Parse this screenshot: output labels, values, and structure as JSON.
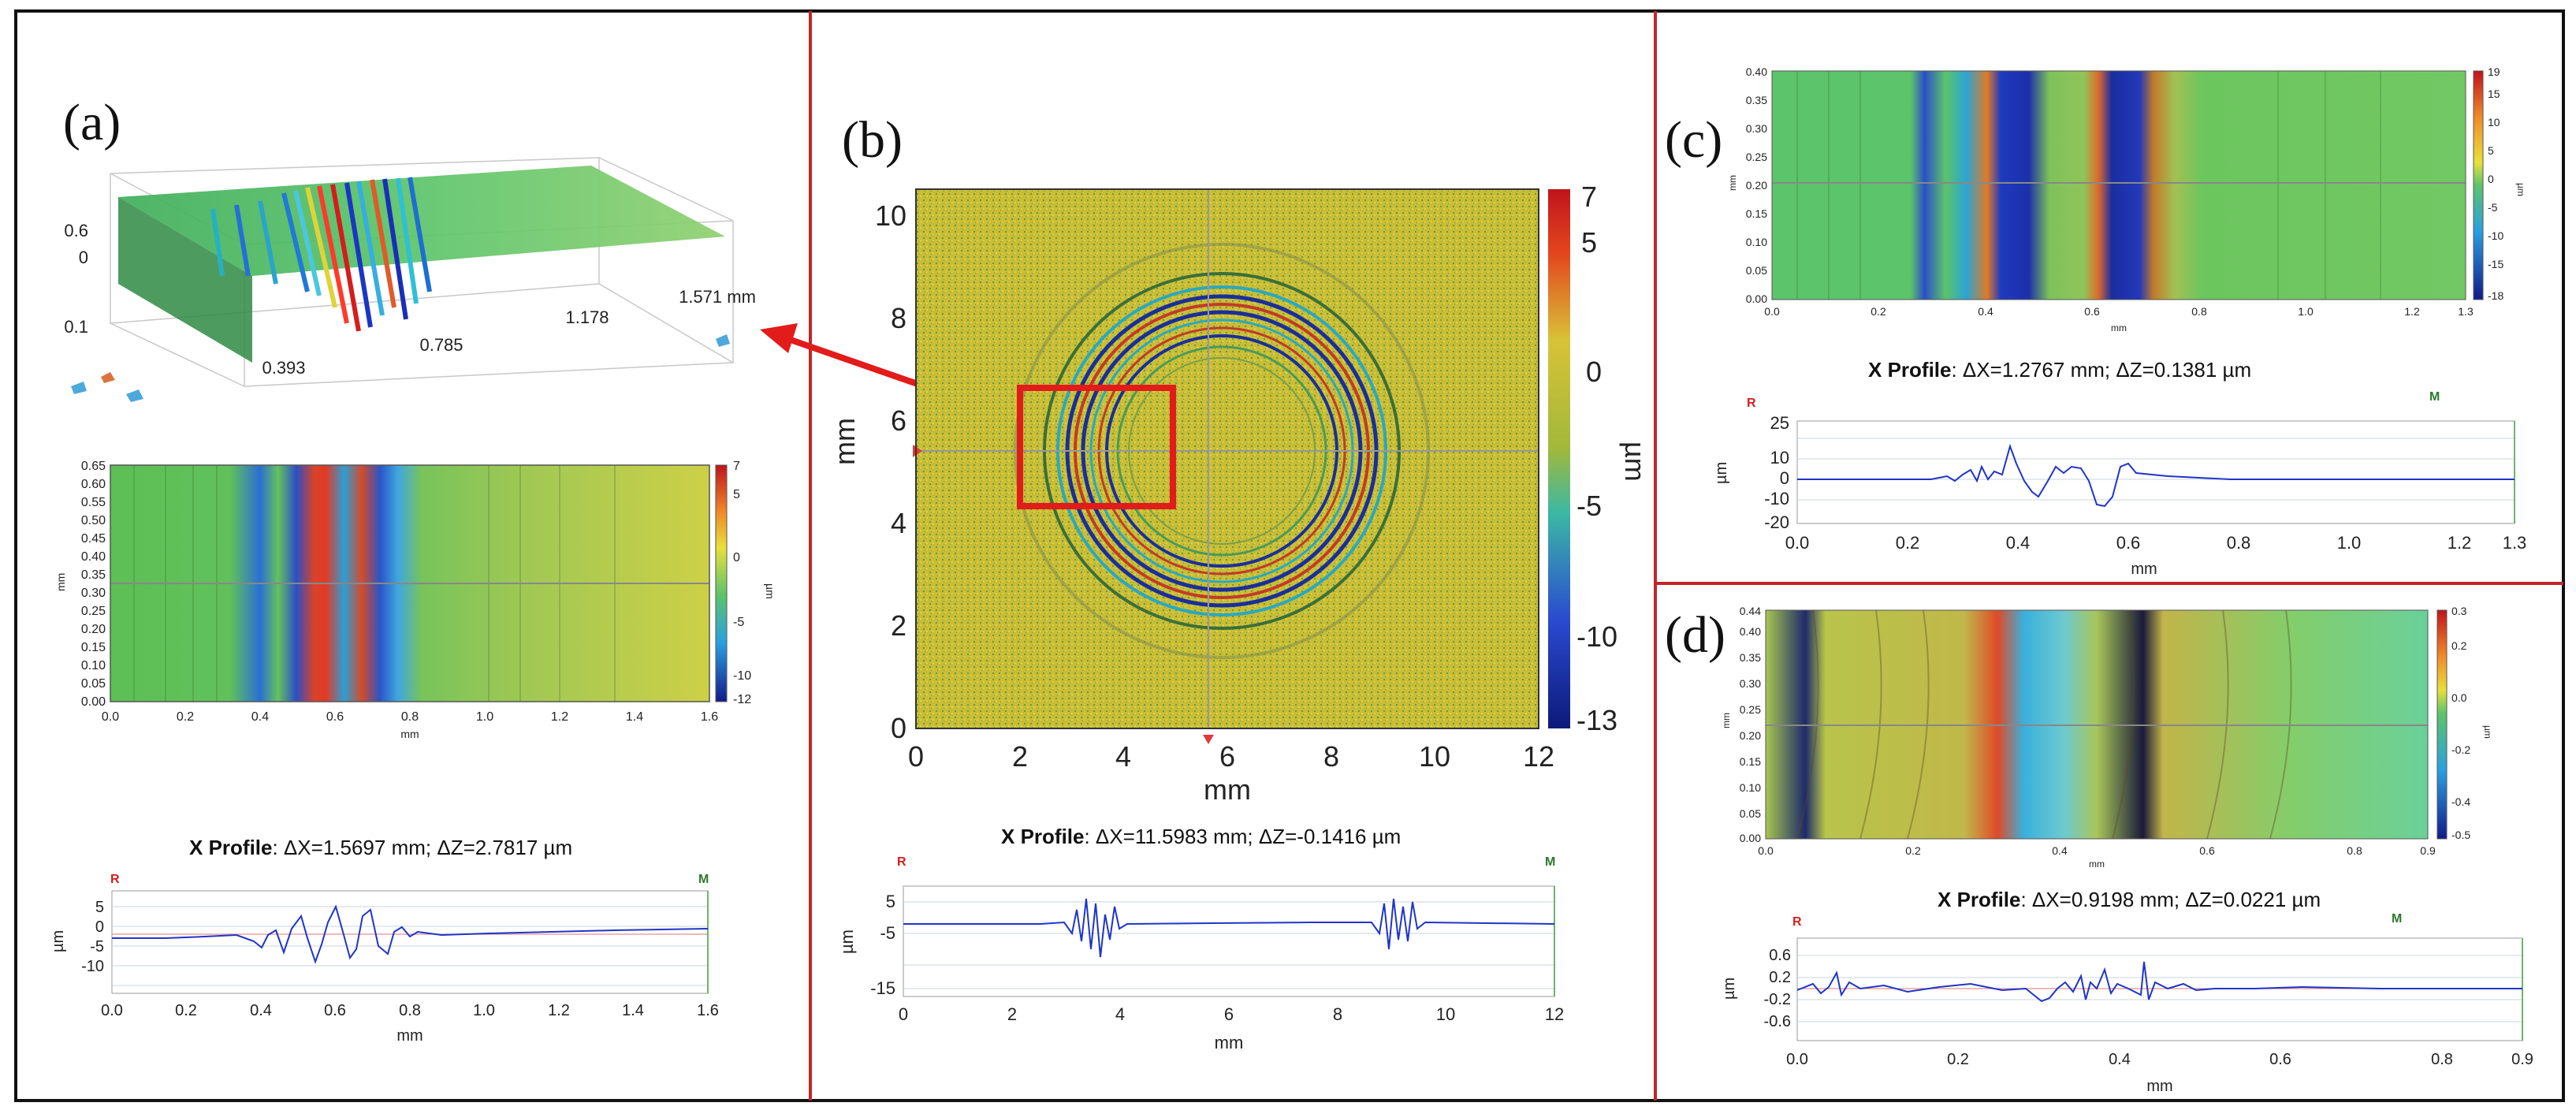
{
  "panels": {
    "a": {
      "label": "(a)",
      "surface3d": {
        "z_ticks": [
          "0.6",
          "0",
          "0.1"
        ],
        "x_ticks": [
          "0.393",
          "0.785",
          "1.178",
          "1.571 mm"
        ]
      },
      "map": {
        "y_unit": "mm",
        "x_unit": "mm",
        "color_unit": "µm",
        "y_ticks": [
          "0.00",
          "0.05",
          "0.10",
          "0.15",
          "0.20",
          "0.25",
          "0.30",
          "0.35",
          "0.40",
          "0.45",
          "0.50",
          "0.55",
          "0.60",
          "0.65"
        ],
        "x_ticks": [
          "0.0",
          "0.2",
          "0.4",
          "0.6",
          "0.8",
          "1.0",
          "1.2",
          "1.4",
          "1.6"
        ],
        "color_ticks": [
          "7",
          "5",
          "0",
          "-5",
          "-10",
          "-12"
        ]
      },
      "profile": {
        "title_prefix": "X Profile",
        "title_values": ": ΔX=1.5697 mm; ΔZ=2.7817 µm",
        "r_marker": "R",
        "m_marker": "M",
        "y_unit": "µm",
        "x_unit": "mm",
        "y_ticks": [
          "5",
          "0",
          "-5",
          "-10"
        ],
        "x_ticks": [
          "0.0",
          "0.2",
          "0.4",
          "0.6",
          "0.8",
          "1.0",
          "1.2",
          "1.4",
          "1.6"
        ]
      }
    },
    "b": {
      "label": "(b)",
      "map": {
        "y_unit": "mm",
        "x_unit": "mm",
        "color_unit": "µm",
        "y_ticks": [
          "0",
          "2",
          "4",
          "6",
          "8",
          "10"
        ],
        "x_ticks": [
          "0",
          "2",
          "4",
          "6",
          "8",
          "10",
          "12"
        ],
        "color_ticks": [
          "7",
          "5",
          "0",
          "-5",
          "-10",
          "-13"
        ]
      },
      "profile": {
        "title_prefix": "X Profile",
        "title_values": ": ΔX=11.5983 mm; ΔZ=-0.1416 µm",
        "r_marker": "R",
        "m_marker": "M",
        "y_unit": "µm",
        "x_unit": "mm",
        "y_ticks": [
          "5",
          "-5",
          "-15"
        ],
        "x_ticks": [
          "0",
          "2",
          "4",
          "6",
          "8",
          "10",
          "12"
        ]
      }
    },
    "c": {
      "label": "(c)",
      "map": {
        "y_unit": "mm",
        "x_unit": "mm",
        "color_unit": "µm",
        "y_ticks": [
          "0.00",
          "0.05",
          "0.10",
          "0.15",
          "0.20",
          "0.25",
          "0.30",
          "0.35",
          "0.40"
        ],
        "x_ticks": [
          "0.0",
          "0.2",
          "0.4",
          "0.6",
          "0.8",
          "1.0",
          "1.2",
          "1.3"
        ],
        "color_ticks": [
          "19",
          "15",
          "10",
          "5",
          "0",
          "-5",
          "-10",
          "-15",
          "-18"
        ]
      },
      "profile": {
        "title_prefix": "X Profile",
        "title_values": ": ΔX=1.2767 mm; ΔZ=0.1381 µm",
        "r_marker": "R",
        "m_marker": "M",
        "y_unit": "µm",
        "x_unit": "mm",
        "y_ticks": [
          "25",
          "10",
          "0",
          "-10",
          "-20"
        ],
        "x_ticks": [
          "0.0",
          "0.2",
          "0.4",
          "0.6",
          "0.8",
          "1.0",
          "1.2",
          "1.3"
        ]
      }
    },
    "d": {
      "label": "(d)",
      "map": {
        "y_unit": "mm",
        "x_unit": "mm",
        "color_unit": "µm",
        "y_ticks": [
          "0.00",
          "0.05",
          "0.10",
          "0.15",
          "0.20",
          "0.25",
          "0.30",
          "0.35",
          "0.40",
          "0.44"
        ],
        "x_ticks": [
          "0.0",
          "0.2",
          "0.4",
          "0.6",
          "0.8",
          "0.9"
        ],
        "color_ticks": [
          "0.3",
          "0.2",
          "0.0",
          "-0.2",
          "-0.4",
          "-0.5"
        ]
      },
      "profile": {
        "title_prefix": "X Profile",
        "title_values": ": ΔX=0.9198 mm; ΔZ=0.0221 µm",
        "r_marker": "R",
        "m_marker": "M",
        "y_unit": "µm",
        "x_unit": "mm",
        "y_ticks": [
          "0.6",
          "0.2",
          "-0.2",
          "-0.6"
        ],
        "x_ticks": [
          "0.0",
          "0.2",
          "0.4",
          "0.6",
          "0.8",
          "0.9"
        ]
      }
    }
  },
  "colors": {
    "border": "#111111",
    "separator": "#c0262a",
    "arrow": "#e21b1b",
    "profile_line": "#1f35c8"
  }
}
